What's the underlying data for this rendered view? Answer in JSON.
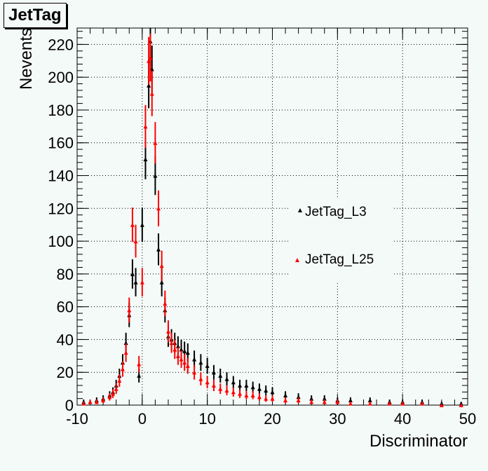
{
  "chart_data": {
    "type": "scatter",
    "title": "JetTag",
    "xlabel": "Discriminator",
    "ylabel": "Nevents",
    "xlim": [
      -10,
      50
    ],
    "ylim": [
      0,
      230
    ],
    "xticks": [
      -10,
      0,
      10,
      20,
      30,
      40,
      50
    ],
    "yticks": [
      0,
      20,
      40,
      60,
      80,
      100,
      120,
      140,
      160,
      180,
      200,
      220
    ],
    "grid": true,
    "legend_position": "center-right",
    "series": [
      {
        "name": "JetTag_L3",
        "color": "#000000",
        "marker": "triangle",
        "x": [
          -9,
          -8,
          -7,
          -6,
          -5,
          -4.5,
          -4,
          -3.5,
          -3,
          -2.5,
          -2,
          -1.5,
          -1,
          -0.5,
          0,
          0.5,
          1,
          1.25,
          1.5,
          2,
          2.5,
          3,
          3.5,
          4,
          4.5,
          5,
          5.5,
          6,
          6.5,
          7,
          8,
          9,
          10,
          11,
          12,
          13,
          14,
          15,
          16,
          17,
          18,
          19,
          20,
          22,
          24,
          26,
          28,
          30,
          32,
          35,
          38,
          40,
          43,
          46,
          49
        ],
        "y": [
          2,
          2,
          3,
          4,
          6,
          8,
          12,
          18,
          26,
          38,
          55,
          80,
          75,
          18,
          110,
          150,
          195,
          222,
          205,
          140,
          95,
          75,
          58,
          42,
          40,
          38,
          36,
          34,
          33,
          32,
          28,
          26,
          24,
          20,
          18,
          16,
          14,
          12,
          12,
          11,
          10,
          9,
          8,
          6,
          5,
          4,
          4,
          3,
          3,
          3,
          2,
          2,
          2,
          1,
          1
        ]
      },
      {
        "name": "JetTag_L25",
        "color": "#ff0000",
        "marker": "triangle",
        "x": [
          -9,
          -8,
          -7,
          -6,
          -5,
          -4.5,
          -4,
          -3.5,
          -3,
          -2.5,
          -2,
          -1.5,
          -1,
          -0.5,
          0,
          0.5,
          1,
          1.25,
          1.5,
          2,
          2.5,
          3,
          3.5,
          4,
          4.5,
          5,
          5.5,
          6,
          6.5,
          7,
          8,
          9,
          10,
          11,
          12,
          13,
          14,
          15,
          16,
          17,
          18,
          19,
          20,
          22,
          24,
          26,
          28,
          30,
          32,
          35,
          38,
          40,
          43,
          46,
          49
        ],
        "y": [
          1,
          2,
          2,
          3,
          5,
          7,
          10,
          15,
          22,
          32,
          58,
          110,
          100,
          25,
          75,
          170,
          210,
          212,
          190,
          160,
          120,
          85,
          62,
          45,
          38,
          34,
          30,
          28,
          26,
          24,
          20,
          16,
          14,
          12,
          10,
          9,
          8,
          7,
          6,
          6,
          5,
          4,
          4,
          3,
          3,
          2,
          2,
          2,
          1,
          1,
          1,
          1,
          1,
          0,
          0
        ]
      }
    ]
  }
}
